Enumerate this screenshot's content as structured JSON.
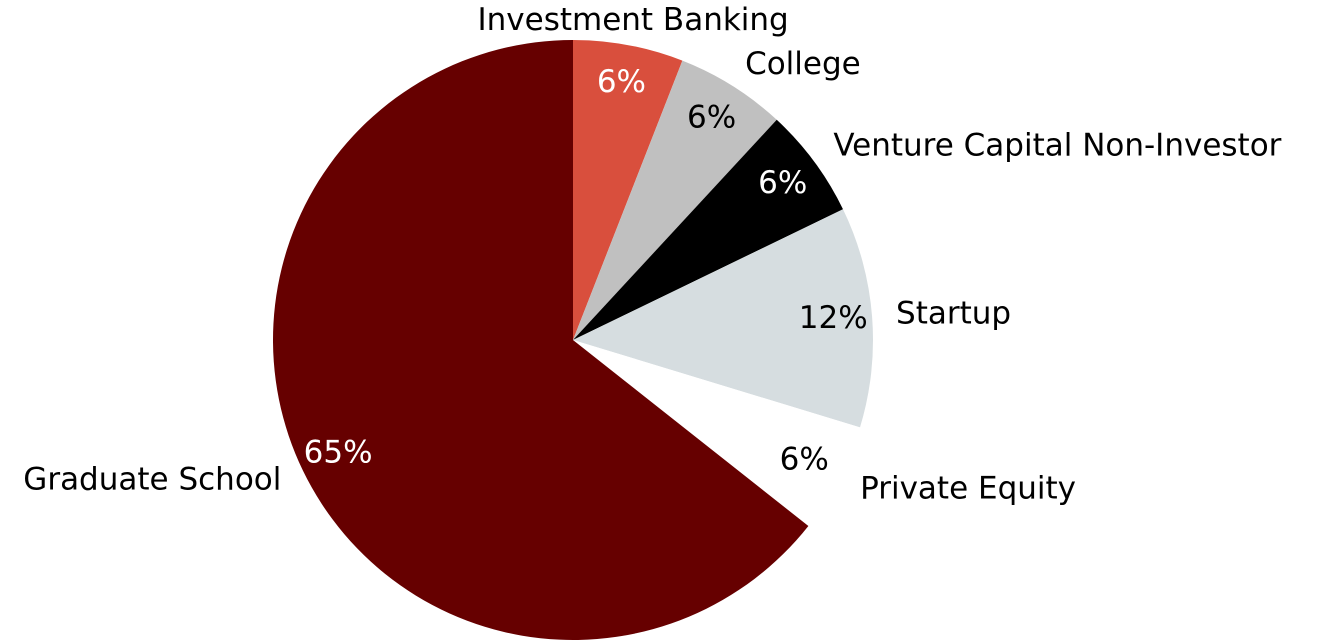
{
  "chart_data": {
    "type": "pie",
    "categories": [
      "Investment Banking",
      "College",
      "Venture Capital Non-Investor",
      "Startup",
      "Private Equity",
      "Graduate School"
    ],
    "values": [
      6,
      6,
      6,
      12,
      6,
      65
    ],
    "value_labels": [
      "6%",
      "6%",
      "6%",
      "12%",
      "6%",
      "65%"
    ],
    "colors": [
      "#d94f3d",
      "#c0c0c0",
      "#000000",
      "#d6dde0",
      "#ffffff",
      "#660000"
    ],
    "start_angle": 90,
    "direction": "clockwise"
  }
}
